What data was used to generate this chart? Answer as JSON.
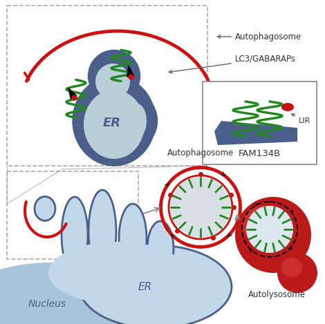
{
  "background_color": "#ffffff",
  "fig_width": 4.7,
  "fig_height": 4.69,
  "dpi": 100,
  "er_dark": "#4a5f8a",
  "er_light": "#b8cfd8",
  "red_color": "#cc1111",
  "green_color": "#228822",
  "black_color": "#111111",
  "nucleus_color": "#a8c4d8",
  "nucleus_edge": "#5a7aa0",
  "er_bottom_light": "#c0d8e8",
  "er_bottom_edge": "#4a5f8a",
  "label_autophagosome_top": "Autophagosome",
  "label_lc3": "LC3/GABARAPs",
  "label_er_top": "ER",
  "label_fam134b": "FAM134B",
  "label_lir": "LIR",
  "label_autophagosome_bottom": "Autophagosome",
  "label_er_bottom": "ER",
  "label_nucleus": "Nucleus",
  "label_autolysosome": "Autolysosome"
}
